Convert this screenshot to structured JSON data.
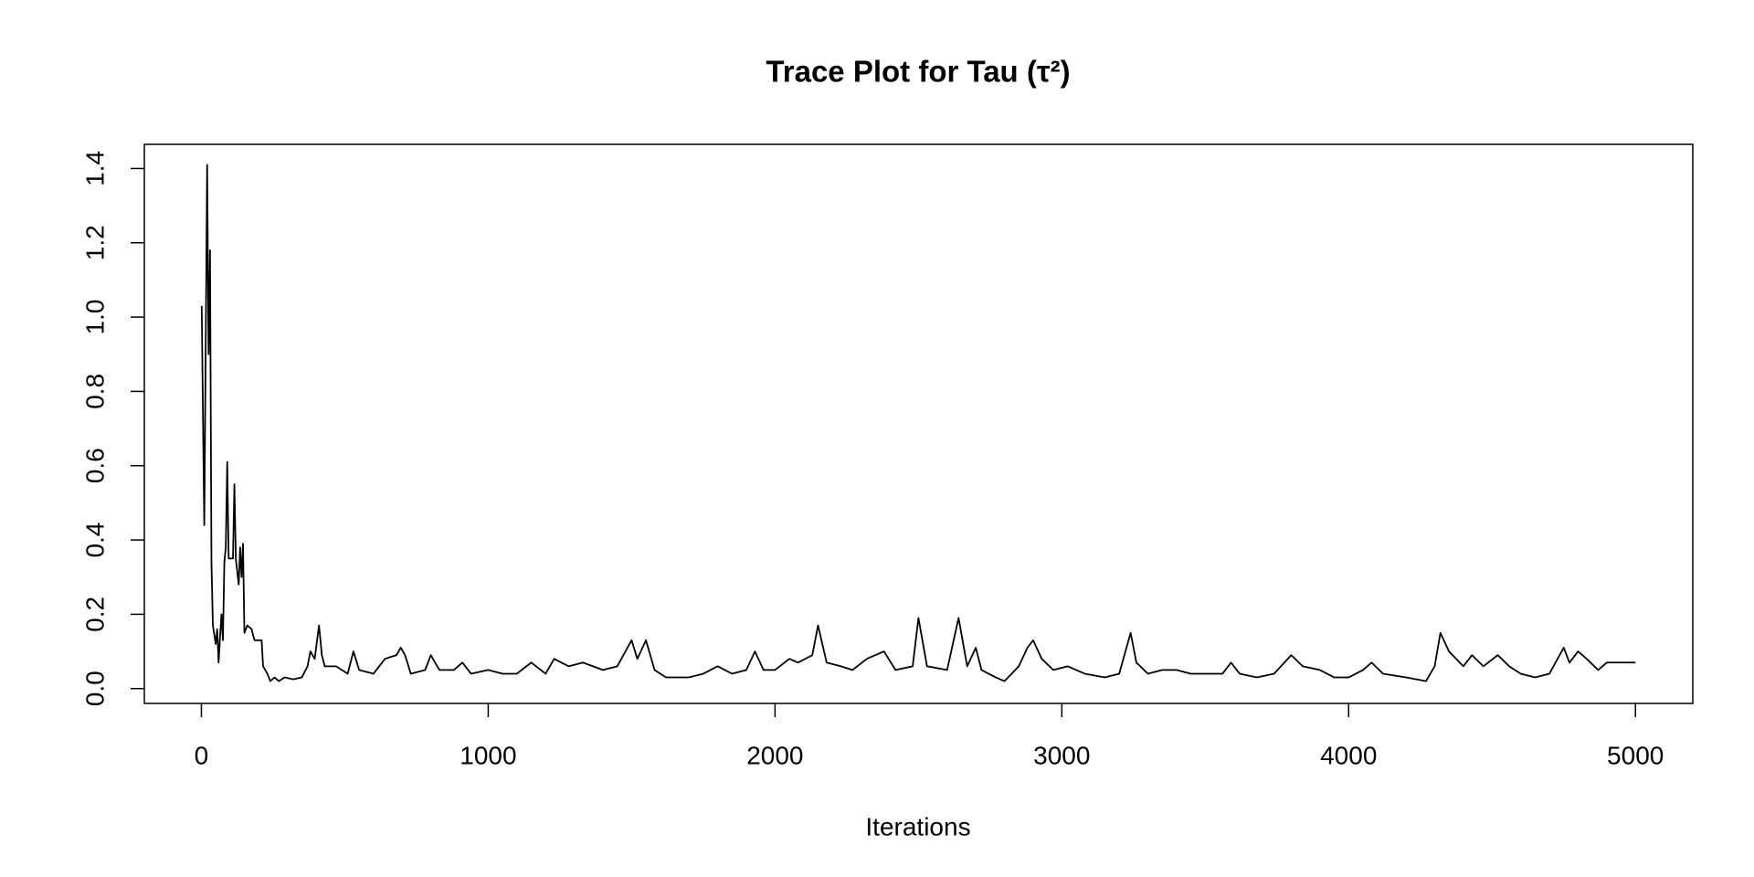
{
  "chart_data": {
    "type": "line",
    "title": "Trace Plot for Tau (τ²)",
    "x_label": "Iterations",
    "x": [
      1,
      10,
      20,
      25,
      30,
      35,
      40,
      50,
      55,
      60,
      65,
      70,
      75,
      80,
      85,
      90,
      95,
      110,
      115,
      120,
      130,
      135,
      140,
      145,
      150,
      160,
      175,
      185,
      210,
      215,
      230,
      240,
      255,
      270,
      290,
      320,
      350,
      370,
      380,
      395,
      410,
      420,
      430,
      470,
      510,
      530,
      550,
      600,
      640,
      680,
      695,
      710,
      730,
      780,
      800,
      830,
      880,
      910,
      940,
      1000,
      1050,
      1100,
      1150,
      1200,
      1230,
      1280,
      1330,
      1400,
      1450,
      1500,
      1520,
      1550,
      1580,
      1620,
      1700,
      1750,
      1800,
      1850,
      1900,
      1930,
      1960,
      2000,
      2050,
      2080,
      2130,
      2150,
      2180,
      2230,
      2270,
      2320,
      2380,
      2420,
      2480,
      2500,
      2530,
      2600,
      2640,
      2670,
      2700,
      2720,
      2770,
      2800,
      2850,
      2880,
      2900,
      2930,
      2970,
      3020,
      3080,
      3150,
      3200,
      3240,
      3260,
      3300,
      3350,
      3400,
      3450,
      3500,
      3560,
      3590,
      3620,
      3680,
      3740,
      3800,
      3840,
      3900,
      3950,
      4000,
      4050,
      4080,
      4120,
      4200,
      4270,
      4300,
      4320,
      4350,
      4400,
      4430,
      4470,
      4520,
      4560,
      4600,
      4650,
      4700,
      4750,
      4770,
      4800,
      4830,
      4870,
      4900,
      4950,
      5000
    ],
    "values": [
      1.03,
      0.44,
      1.41,
      0.9,
      1.18,
      0.34,
      0.17,
      0.12,
      0.16,
      0.07,
      0.14,
      0.2,
      0.13,
      0.34,
      0.38,
      0.61,
      0.35,
      0.35,
      0.55,
      0.35,
      0.28,
      0.38,
      0.3,
      0.39,
      0.15,
      0.17,
      0.16,
      0.13,
      0.13,
      0.06,
      0.04,
      0.02,
      0.03,
      0.02,
      0.03,
      0.025,
      0.03,
      0.06,
      0.1,
      0.08,
      0.17,
      0.09,
      0.06,
      0.06,
      0.04,
      0.1,
      0.05,
      0.04,
      0.08,
      0.09,
      0.11,
      0.09,
      0.04,
      0.05,
      0.09,
      0.05,
      0.05,
      0.07,
      0.04,
      0.05,
      0.04,
      0.04,
      0.07,
      0.04,
      0.08,
      0.06,
      0.07,
      0.05,
      0.06,
      0.13,
      0.08,
      0.13,
      0.05,
      0.03,
      0.03,
      0.04,
      0.06,
      0.04,
      0.05,
      0.1,
      0.05,
      0.05,
      0.08,
      0.07,
      0.09,
      0.17,
      0.07,
      0.06,
      0.05,
      0.08,
      0.1,
      0.05,
      0.06,
      0.19,
      0.06,
      0.05,
      0.19,
      0.06,
      0.11,
      0.05,
      0.03,
      0.02,
      0.06,
      0.11,
      0.13,
      0.08,
      0.05,
      0.06,
      0.04,
      0.03,
      0.04,
      0.15,
      0.07,
      0.04,
      0.05,
      0.05,
      0.04,
      0.04,
      0.04,
      0.07,
      0.04,
      0.03,
      0.04,
      0.09,
      0.06,
      0.05,
      0.03,
      0.03,
      0.05,
      0.07,
      0.04,
      0.03,
      0.02,
      0.06,
      0.15,
      0.1,
      0.06,
      0.09,
      0.06,
      0.09,
      0.06,
      0.04,
      0.03,
      0.04,
      0.11,
      0.07,
      0.1,
      0.08,
      0.05,
      0.07,
      0.07,
      0.07
    ],
    "color": "#000000",
    "xlim": [
      -199,
      5200
    ],
    "xticks": [
      0,
      1000,
      2000,
      3000,
      4000,
      5000
    ],
    "ylim": [
      -0.04,
      1.465
    ],
    "yticks": [
      {
        "value": 0,
        "label": "0.0"
      },
      0.2,
      0.4,
      0.6,
      0.8,
      {
        "value": 1,
        "label": "1.0"
      },
      1.2,
      1.4
    ]
  }
}
